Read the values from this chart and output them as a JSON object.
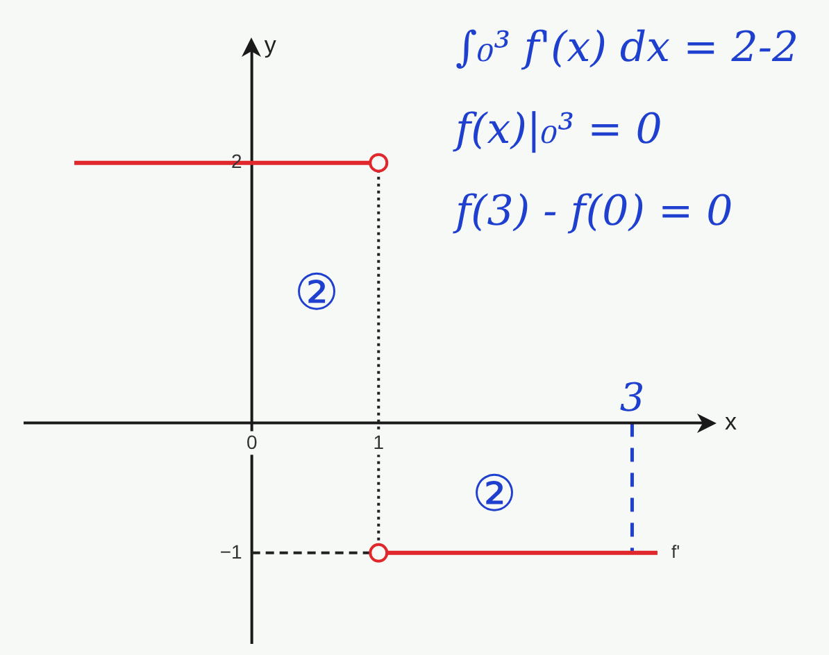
{
  "chart_data": {
    "type": "line",
    "xlabel": "x",
    "ylabel": "y",
    "xlim": [
      -1.8,
      3.6
    ],
    "ylim": [
      -1.7,
      2.9
    ],
    "xticks": [
      0,
      1
    ],
    "yticks": [
      {
        "value": -1,
        "label": "−1"
      },
      2
    ],
    "series": [
      {
        "name": "f'",
        "color": "#e0282c",
        "x": [
          -1.4,
          1,
          null,
          1,
          3.2
        ],
        "values": [
          2,
          2,
          null,
          -1,
          -1
        ],
        "marker": "none"
      },
      {
        "type": "scatter",
        "color": "#e0282c",
        "x": [
          1,
          1
        ],
        "values": [
          2,
          -1
        ],
        "marker": "circle"
      },
      {
        "color": "#222222",
        "x": [
          1,
          1
        ],
        "values": [
          2,
          -1
        ],
        "line_style": "dotted",
        "marker": "none"
      },
      {
        "color": "#222222",
        "x": [
          0,
          1
        ],
        "values": [
          -1,
          -1
        ],
        "line_style": "dashed",
        "marker": "none"
      }
    ],
    "ref_lines": [
      {
        "axis": "x",
        "value": 3,
        "label": "3",
        "color": "#1f3fcf",
        "line_style": "dashed"
      }
    ],
    "annotations": [
      "∫₀³ f'(x) dx = 2-2",
      "f(x)|₀³ = 0",
      "f(3) - f(0) = 0",
      "②",
      "②"
    ]
  }
}
